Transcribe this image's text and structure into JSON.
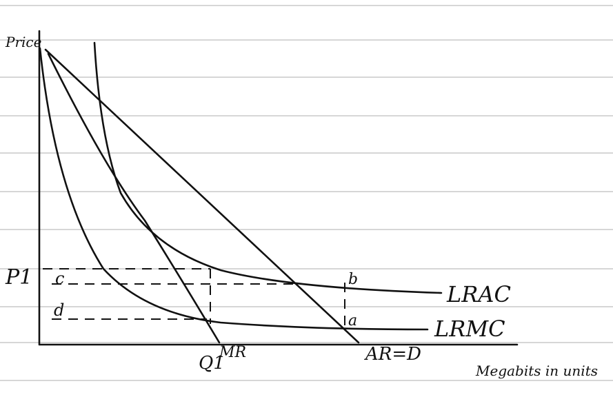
{
  "axes": {
    "y_label": "Price",
    "x_label": "Megabits in units"
  },
  "labels": {
    "p1": "P1",
    "c": "c",
    "d": "d",
    "q1": "Q1",
    "mr": "MR",
    "ar": "AR=D",
    "lrac": "LRAC",
    "lrmc": "LRMC",
    "b": "b",
    "a": "a"
  }
}
